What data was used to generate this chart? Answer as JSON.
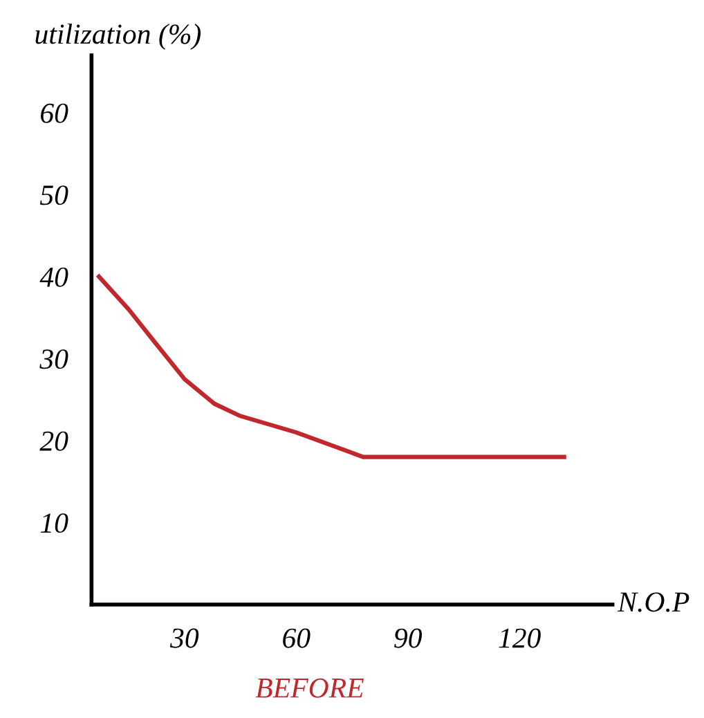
{
  "chart_data": {
    "type": "line",
    "xlabel": "N.O.P",
    "ylabel": "utilization (%)",
    "x": [
      7,
      15,
      22,
      30,
      38,
      45,
      60,
      78,
      132
    ],
    "series": [
      {
        "color": "#c0282d",
        "values": [
          40,
          36,
          32,
          27.5,
          24.5,
          23,
          21,
          18,
          18
        ]
      }
    ],
    "xlim": [
      5,
      145
    ],
    "ylim": [
      0,
      67
    ],
    "xticks": [
      30,
      60,
      90,
      120
    ],
    "yticks": [
      10,
      20,
      30,
      40,
      50,
      60
    ],
    "grid": false,
    "legend": false,
    "marker": "none",
    "line_style": "solid",
    "annotations": [
      "BEFORE"
    ]
  }
}
